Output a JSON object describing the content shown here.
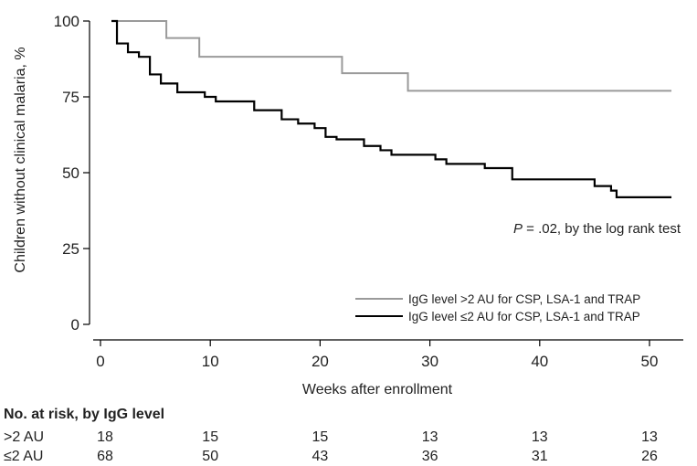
{
  "chart_data": {
    "type": "line",
    "subtype": "kaplan-meier step",
    "xlabel": "Weeks after enrollment",
    "ylabel": "Children without clinical malaria, %",
    "xlim": [
      0,
      52
    ],
    "ylim": [
      0,
      100
    ],
    "x_ticks": [
      0,
      10,
      20,
      30,
      40,
      50
    ],
    "y_ticks": [
      0,
      25,
      50,
      75,
      100
    ],
    "grid": false,
    "legend_position": "bottom-right",
    "annotation": {
      "italic": "P",
      "rest": " = .02, by the log rank test"
    },
    "series": [
      {
        "name": "IgG level >2 AU for CSP, LSA-1 and TRAP",
        "color": "#9a9a9a",
        "x": [
          1,
          6,
          9,
          22,
          28,
          52
        ],
        "y": [
          100,
          94.4,
          88.2,
          82.8,
          77.0,
          77.0
        ]
      },
      {
        "name": "IgG level ≤2 AU for CSP, LSA-1 and TRAP",
        "color": "#000000",
        "x": [
          1,
          1.5,
          2.5,
          3.5,
          4.5,
          5.5,
          7,
          9.5,
          10.5,
          14,
          16.5,
          18,
          19.5,
          20.5,
          21.5,
          24,
          25.5,
          26.5,
          28,
          30.5,
          31.5,
          35,
          37.5,
          40,
          45,
          46.5,
          47,
          52
        ],
        "y": [
          100,
          92.6,
          89.7,
          88.2,
          82.4,
          79.4,
          76.5,
          75.0,
          73.5,
          70.6,
          67.6,
          66.2,
          64.7,
          61.8,
          61.0,
          58.8,
          57.4,
          55.9,
          55.9,
          54.4,
          52.9,
          51.5,
          47.8,
          47.8,
          45.6,
          44.1,
          41.9,
          41.9
        ]
      }
    ]
  },
  "risk_table": {
    "title": "No. at risk, by IgG level",
    "weeks": [
      0,
      10,
      20,
      30,
      40,
      50
    ],
    "rows": [
      {
        "label": ">2 AU",
        "values": [
          "18",
          "15",
          "15",
          "13",
          "13",
          "13"
        ]
      },
      {
        "label": "≤2 AU",
        "values": [
          "68",
          "50",
          "43",
          "36",
          "31",
          "26"
        ]
      }
    ]
  }
}
